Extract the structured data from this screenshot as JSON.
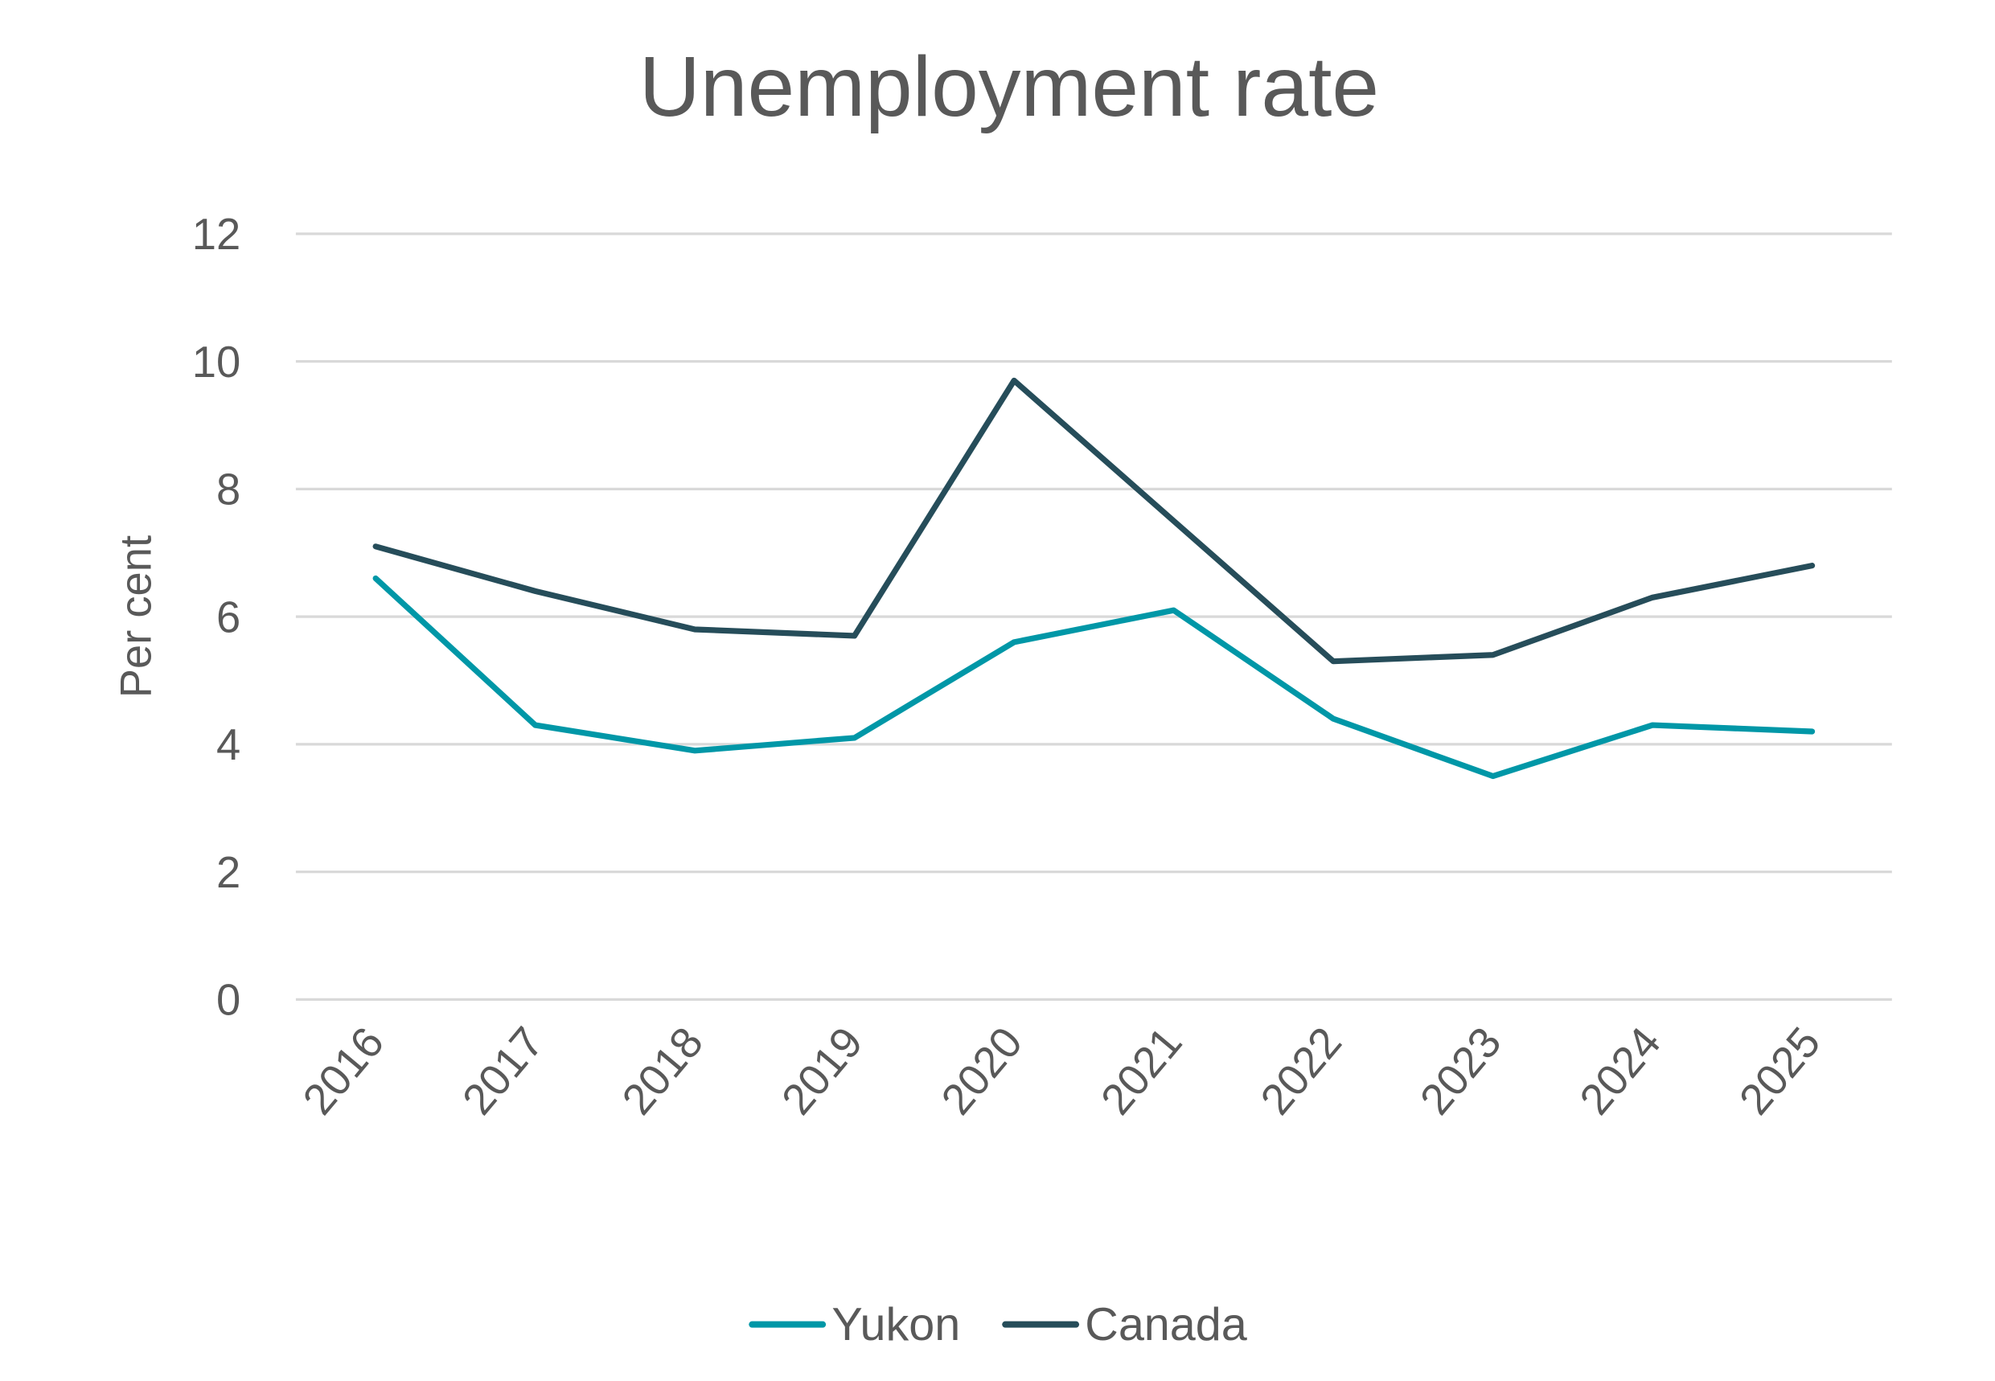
{
  "chart_data": {
    "type": "line",
    "title": "Unemployment rate",
    "xlabel": "",
    "ylabel": "Per cent",
    "categories": [
      "2016",
      "2017",
      "2018",
      "2019",
      "2020",
      "2021",
      "2022",
      "2023",
      "2024",
      "2025"
    ],
    "ylim": [
      0,
      12
    ],
    "yticks": [
      0,
      2,
      4,
      6,
      8,
      10,
      12
    ],
    "grid": true,
    "legend": "bottom",
    "series": [
      {
        "name": "Yukon",
        "color": "#0097A7",
        "values": [
          6.6,
          4.3,
          3.9,
          4.1,
          5.6,
          6.1,
          4.4,
          3.5,
          4.3,
          4.2
        ]
      },
      {
        "name": "Canada",
        "color": "#264D5A",
        "values": [
          7.1,
          6.4,
          5.8,
          5.7,
          9.7,
          7.5,
          5.3,
          5.4,
          6.3,
          6.8
        ]
      }
    ]
  }
}
